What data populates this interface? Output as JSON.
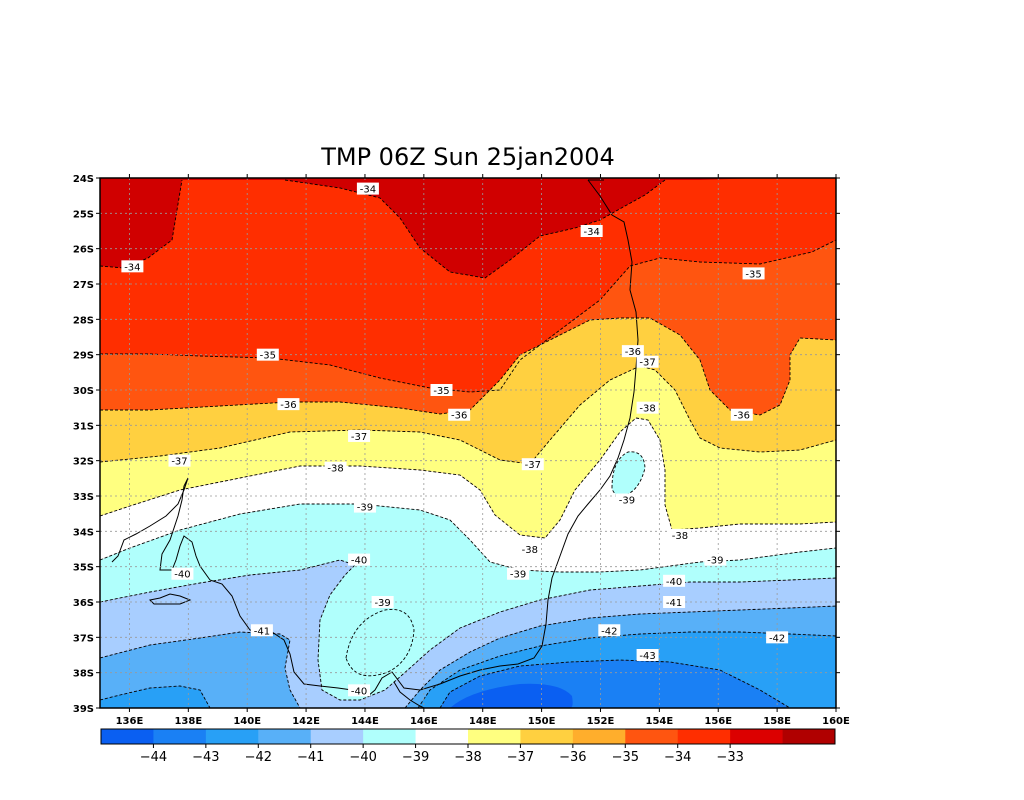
{
  "title": "TMP 06Z Sun 25jan2004",
  "axes": {
    "lat_labels": [
      "24S",
      "25S",
      "26S",
      "27S",
      "28S",
      "29S",
      "30S",
      "31S",
      "32S",
      "33S",
      "34S",
      "35S",
      "36S",
      "37S",
      "38S",
      "39S"
    ],
    "lon_labels": [
      "136E",
      "138E",
      "140E",
      "142E",
      "144E",
      "146E",
      "148E",
      "150E",
      "152E",
      "154E",
      "156E",
      "158E",
      "160E"
    ]
  },
  "extent": {
    "lon_min": 135,
    "lon_max": 160,
    "lat_top": -24,
    "lat_bottom": -39
  },
  "contour_labels": [
    {
      "text": "-34",
      "lon": 144.1,
      "lat": -24.3
    },
    {
      "text": "-34",
      "lon": 151.7,
      "lat": -25.5
    },
    {
      "text": "-34",
      "lon": 136.1,
      "lat": -26.5
    },
    {
      "text": "-35",
      "lon": 157.2,
      "lat": -26.7
    },
    {
      "text": "-35",
      "lon": 140.7,
      "lat": -29.0
    },
    {
      "text": "-35",
      "lon": 146.6,
      "lat": -30.0
    },
    {
      "text": "-36",
      "lon": 153.1,
      "lat": -28.9
    },
    {
      "text": "-36",
      "lon": 141.4,
      "lat": -30.4
    },
    {
      "text": "-36",
      "lon": 147.2,
      "lat": -30.7
    },
    {
      "text": "-36",
      "lon": 156.8,
      "lat": -30.7
    },
    {
      "text": "-37",
      "lon": 153.6,
      "lat": -29.2
    },
    {
      "text": "-37",
      "lon": 143.8,
      "lat": -31.3
    },
    {
      "text": "-37",
      "lon": 137.7,
      "lat": -32.0
    },
    {
      "text": "-37",
      "lon": 149.7,
      "lat": -32.1
    },
    {
      "text": "-38",
      "lon": 153.6,
      "lat": -30.5
    },
    {
      "text": "-38",
      "lon": 143.0,
      "lat": -32.2
    },
    {
      "text": "-38",
      "lon": 154.7,
      "lat": -34.1
    },
    {
      "text": "-38",
      "lon": 149.6,
      "lat": -34.5
    },
    {
      "text": "-39",
      "lon": 144.0,
      "lat": -33.3
    },
    {
      "text": "-39",
      "lon": 152.9,
      "lat": -33.1
    },
    {
      "text": "-39",
      "lon": 149.2,
      "lat": -35.2
    },
    {
      "text": "-39",
      "lon": 155.9,
      "lat": -34.8
    },
    {
      "text": "-39",
      "lon": 144.6,
      "lat": -36.0
    },
    {
      "text": "-40",
      "lon": 143.8,
      "lat": -34.8
    },
    {
      "text": "-40",
      "lon": 137.8,
      "lat": -35.2
    },
    {
      "text": "-40",
      "lon": 154.5,
      "lat": -35.4
    },
    {
      "text": "-40",
      "lon": 143.8,
      "lat": -38.5
    },
    {
      "text": "-41",
      "lon": 154.5,
      "lat": -36.0
    },
    {
      "text": "-41",
      "lon": 140.5,
      "lat": -36.8
    },
    {
      "text": "-42",
      "lon": 152.3,
      "lat": -36.8
    },
    {
      "text": "-42",
      "lon": 158.0,
      "lat": -37.0
    },
    {
      "text": "-43",
      "lon": 153.6,
      "lat": -37.5
    }
  ],
  "colorbar": {
    "labels": [
      "-44",
      "-43",
      "-42",
      "-41",
      "-40",
      "-39",
      "-38",
      "-37",
      "-36",
      "-35",
      "-34",
      "-33"
    ],
    "colors": [
      "#0a5ff2",
      "#1a80f4",
      "#28a0f6",
      "#58b0f8",
      "#a8ceff",
      "#b0fffc",
      "#ffffff",
      "#ffff80",
      "#ffd040",
      "#ffae2c",
      "#ff5510",
      "#ff2e00",
      "#dc0000",
      "#b00000"
    ]
  },
  "level_colors": {
    "le_-43": "#1a80f4",
    "-43_-42": "#28a0f6",
    "-42_-41": "#58b0f8",
    "-41_-40": "#a8ceff",
    "-40_-39": "#b0fffc",
    "-39_-38": "#ffffff",
    "-38_-37": "#ffff80",
    "-37_-36": "#ffd040",
    "-36_-35": "#ff5510",
    "-35_-34": "#ff2e00",
    "ge_-34": "#d00000"
  }
}
